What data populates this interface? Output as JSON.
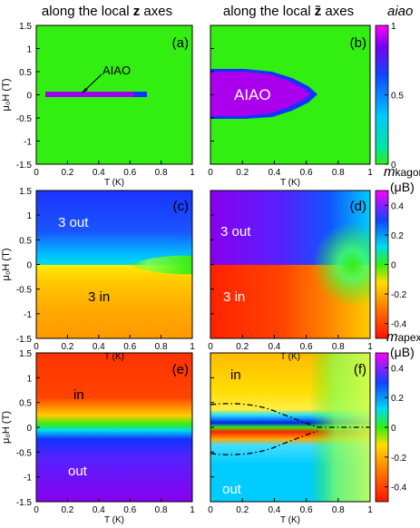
{
  "titles": {
    "left": {
      "prefix": "along the local ",
      "var": "z",
      "suffix": " axes"
    },
    "right": {
      "prefix": "along the local ",
      "var": "z̃",
      "suffix": " axes"
    }
  },
  "axes": {
    "xlabel": "T (K)",
    "ylabel": "μ₀H (T)",
    "xticks": [
      "0",
      "0.2",
      "0.4",
      "0.6",
      "0.8",
      "1"
    ],
    "yticks": [
      "1.5",
      "1",
      "0.5",
      "0",
      "-0.5",
      "-1",
      "-1.5"
    ]
  },
  "panel_labels": [
    "(a)",
    "(b)",
    "(c)",
    "(d)",
    "(e)",
    "(f)"
  ],
  "colorbars": [
    {
      "label": "aiao",
      "sub": "",
      "unit": "",
      "ticks": [
        "1",
        "0.5",
        "0"
      ]
    },
    {
      "label": "m",
      "sub": "kagome",
      "unit": "(μB)",
      "ticks": [
        "0.4",
        "0.2",
        "0",
        "-0.2",
        "-0.4"
      ]
    },
    {
      "label": "m",
      "sub": "apex",
      "unit": "(μB)",
      "ticks": [
        "0.4",
        "0.2",
        "0",
        "-0.2",
        "-0.4"
      ]
    }
  ],
  "annotations": {
    "a": "AIAO",
    "b": "AIAO",
    "c_top": "3 out",
    "c_bot": "3 in",
    "d_top": "3 out",
    "d_bot": "3 in",
    "e_top": "in",
    "e_bot": "out",
    "f_top": "in",
    "f_bot": "out"
  },
  "colors": {
    "green": "#33ee11",
    "purple": "#aa00ee",
    "blue": "#1133ff",
    "cyan": "#00ddee",
    "orange": "#ffaa00",
    "red": "#ff2200"
  },
  "chart_data": [
    {
      "type": "heatmap",
      "panel": "a",
      "quantity": "aiao",
      "xlim": [
        0,
        1
      ],
      "ylim": [
        -1.5,
        1.5
      ],
      "zlim": [
        0,
        1
      ],
      "description_region": {
        "aiao_1": {
          "T_range": [
            0.05,
            0.7
          ],
          "H_range": [
            -0.03,
            0.03
          ]
        }
      }
    },
    {
      "type": "heatmap",
      "panel": "b",
      "quantity": "aiao",
      "xlim": [
        0,
        1
      ],
      "ylim": [
        -1.5,
        1.5
      ],
      "zlim": [
        0,
        1
      ],
      "boundary": {
        "T": [
          0.05,
          0.2,
          0.4,
          0.6,
          0.7,
          0.75
        ],
        "H": [
          0.55,
          0.52,
          0.45,
          0.3,
          0.15,
          0.0
        ]
      }
    },
    {
      "type": "heatmap",
      "panel": "c",
      "quantity": "m_kagome",
      "xlim": [
        0,
        1
      ],
      "ylim": [
        -1.5,
        1.5
      ],
      "zlim": [
        -0.5,
        0.5
      ]
    },
    {
      "type": "heatmap",
      "panel": "d",
      "quantity": "m_kagome",
      "xlim": [
        0,
        1
      ],
      "ylim": [
        -1.5,
        1.5
      ],
      "zlim": [
        -0.5,
        0.5
      ]
    },
    {
      "type": "heatmap",
      "panel": "e",
      "quantity": "m_apex",
      "xlim": [
        0,
        1
      ],
      "ylim": [
        -1.5,
        1.5
      ],
      "zlim": [
        -0.5,
        0.5
      ]
    },
    {
      "type": "heatmap",
      "panel": "f",
      "quantity": "m_apex",
      "xlim": [
        0,
        1
      ],
      "ylim": [
        -1.5,
        1.5
      ],
      "zlim": [
        -0.5,
        0.5
      ],
      "dashed_boundary": {
        "T": [
          0.05,
          0.2,
          0.4,
          0.6,
          0.7,
          0.75,
          1.0
        ],
        "H": [
          0.55,
          0.52,
          0.45,
          0.3,
          0.15,
          0.0,
          0.0
        ]
      }
    }
  ]
}
